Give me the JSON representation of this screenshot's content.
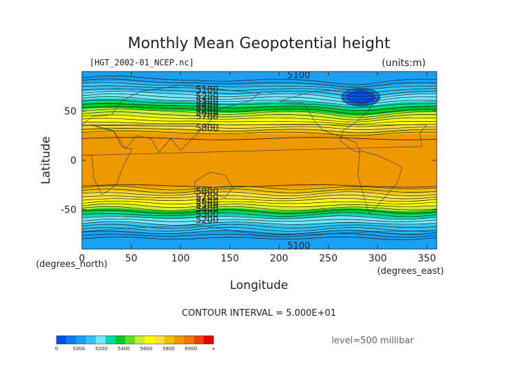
{
  "chart_data": {
    "type": "heatmap",
    "title": "Monthly Mean Geopotential height",
    "file_label": "[HGT_2002-01_NCEP.nc]",
    "units_label": "(units:m)",
    "xlabel": "Longitude",
    "ylabel": "Latitude",
    "x_unit_label": "(degrees_east)",
    "y_unit_label": "(degrees_north)",
    "xlim": [
      0,
      360
    ],
    "ylim": [
      -90,
      90
    ],
    "x_ticks": [
      0,
      50,
      100,
      150,
      200,
      250,
      300,
      350
    ],
    "y_ticks": [
      -50,
      0,
      50
    ],
    "contour_interval_label": "CONTOUR INTERVAL = 5.000E+01",
    "level_label": "level=500 millibar",
    "contour_labels": [
      "5100",
      "5100",
      "5200",
      "5300",
      "5400",
      "5500",
      "5600",
      "5700",
      "5800",
      "5800",
      "5700",
      "5600",
      "5500",
      "5400",
      "5300",
      "5200",
      "5100"
    ],
    "colorbar": {
      "tick_labels": [
        "0",
        "5000",
        "5200",
        "5400",
        "5600",
        "5800",
        "6000",
        "∞"
      ],
      "bins": [
        {
          "color": "#0050e8"
        },
        {
          "color": "#0a7aec"
        },
        {
          "color": "#1aa0f2"
        },
        {
          "color": "#30c4f6"
        },
        {
          "color": "#70e8ff"
        },
        {
          "color": "#00d8a8"
        },
        {
          "color": "#00c828"
        },
        {
          "color": "#60e020"
        },
        {
          "color": "#c8f030"
        },
        {
          "color": "#ffff00"
        },
        {
          "color": "#f8e040"
        },
        {
          "color": "#f0c000"
        },
        {
          "color": "#f09800"
        },
        {
          "color": "#f07800"
        },
        {
          "color": "#f04000"
        },
        {
          "color": "#e80000"
        }
      ]
    },
    "height_field_bands": [
      {
        "lat_from": 90,
        "lat_to": 77,
        "color": "#1aa0f2"
      },
      {
        "lat_from": 77,
        "lat_to": 68,
        "color": "#30c4f6"
      },
      {
        "lat_from": 68,
        "lat_to": 60,
        "color": "#70e8ff"
      },
      {
        "lat_from": 60,
        "lat_to": 56,
        "color": "#00d8a8"
      },
      {
        "lat_from": 56,
        "lat_to": 50,
        "color": "#00c828"
      },
      {
        "lat_from": 50,
        "lat_to": 44,
        "color": "#c8f030"
      },
      {
        "lat_from": 44,
        "lat_to": 37,
        "color": "#ffff00"
      },
      {
        "lat_from": 37,
        "lat_to": 32,
        "color": "#f8e040"
      },
      {
        "lat_from": 32,
        "lat_to": 27,
        "color": "#f0c000"
      },
      {
        "lat_from": 27,
        "lat_to": -27,
        "color": "#f09800"
      },
      {
        "lat_from": -27,
        "lat_to": -33,
        "color": "#f0c000"
      },
      {
        "lat_from": -33,
        "lat_to": -40,
        "color": "#f8e040"
      },
      {
        "lat_from": -40,
        "lat_to": -46,
        "color": "#ffff00"
      },
      {
        "lat_from": -46,
        "lat_to": -50,
        "color": "#c8f030"
      },
      {
        "lat_from": -50,
        "lat_to": -54,
        "color": "#00c828"
      },
      {
        "lat_from": -54,
        "lat_to": -58,
        "color": "#00d8a8"
      },
      {
        "lat_from": -58,
        "lat_to": -64,
        "color": "#70e8ff"
      },
      {
        "lat_from": -64,
        "lat_to": -72,
        "color": "#30c4f6"
      },
      {
        "lat_from": -72,
        "lat_to": -90,
        "color": "#1aa0f2"
      }
    ],
    "low_center": {
      "lon": 283,
      "lat": 64,
      "color": "#0a7aec",
      "core_color": "#0050e8"
    }
  }
}
